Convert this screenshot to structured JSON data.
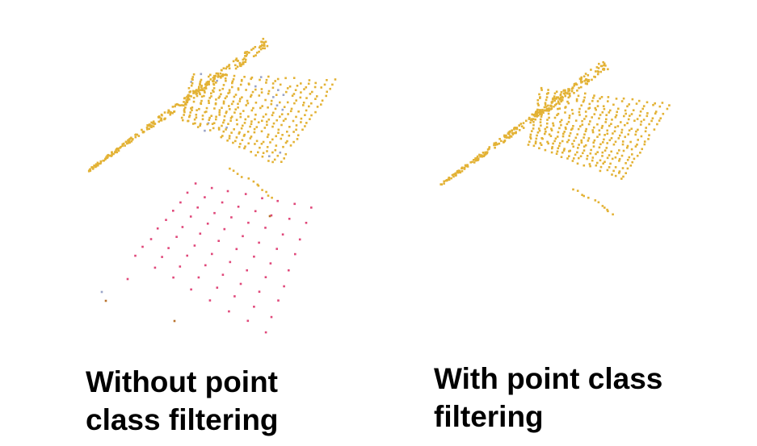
{
  "figure": {
    "panels": [
      {
        "caption": "Without point\nclass filtering",
        "shows_filtered": false
      },
      {
        "caption": "With point class\nfiltering",
        "shows_filtered": true
      }
    ],
    "colors": {
      "ground_points": "#e3b235",
      "noise_points": "#e0487a",
      "gray_points": "#9aa4c8",
      "dark_points": "#b8702a",
      "background": "#ffffff"
    }
  }
}
